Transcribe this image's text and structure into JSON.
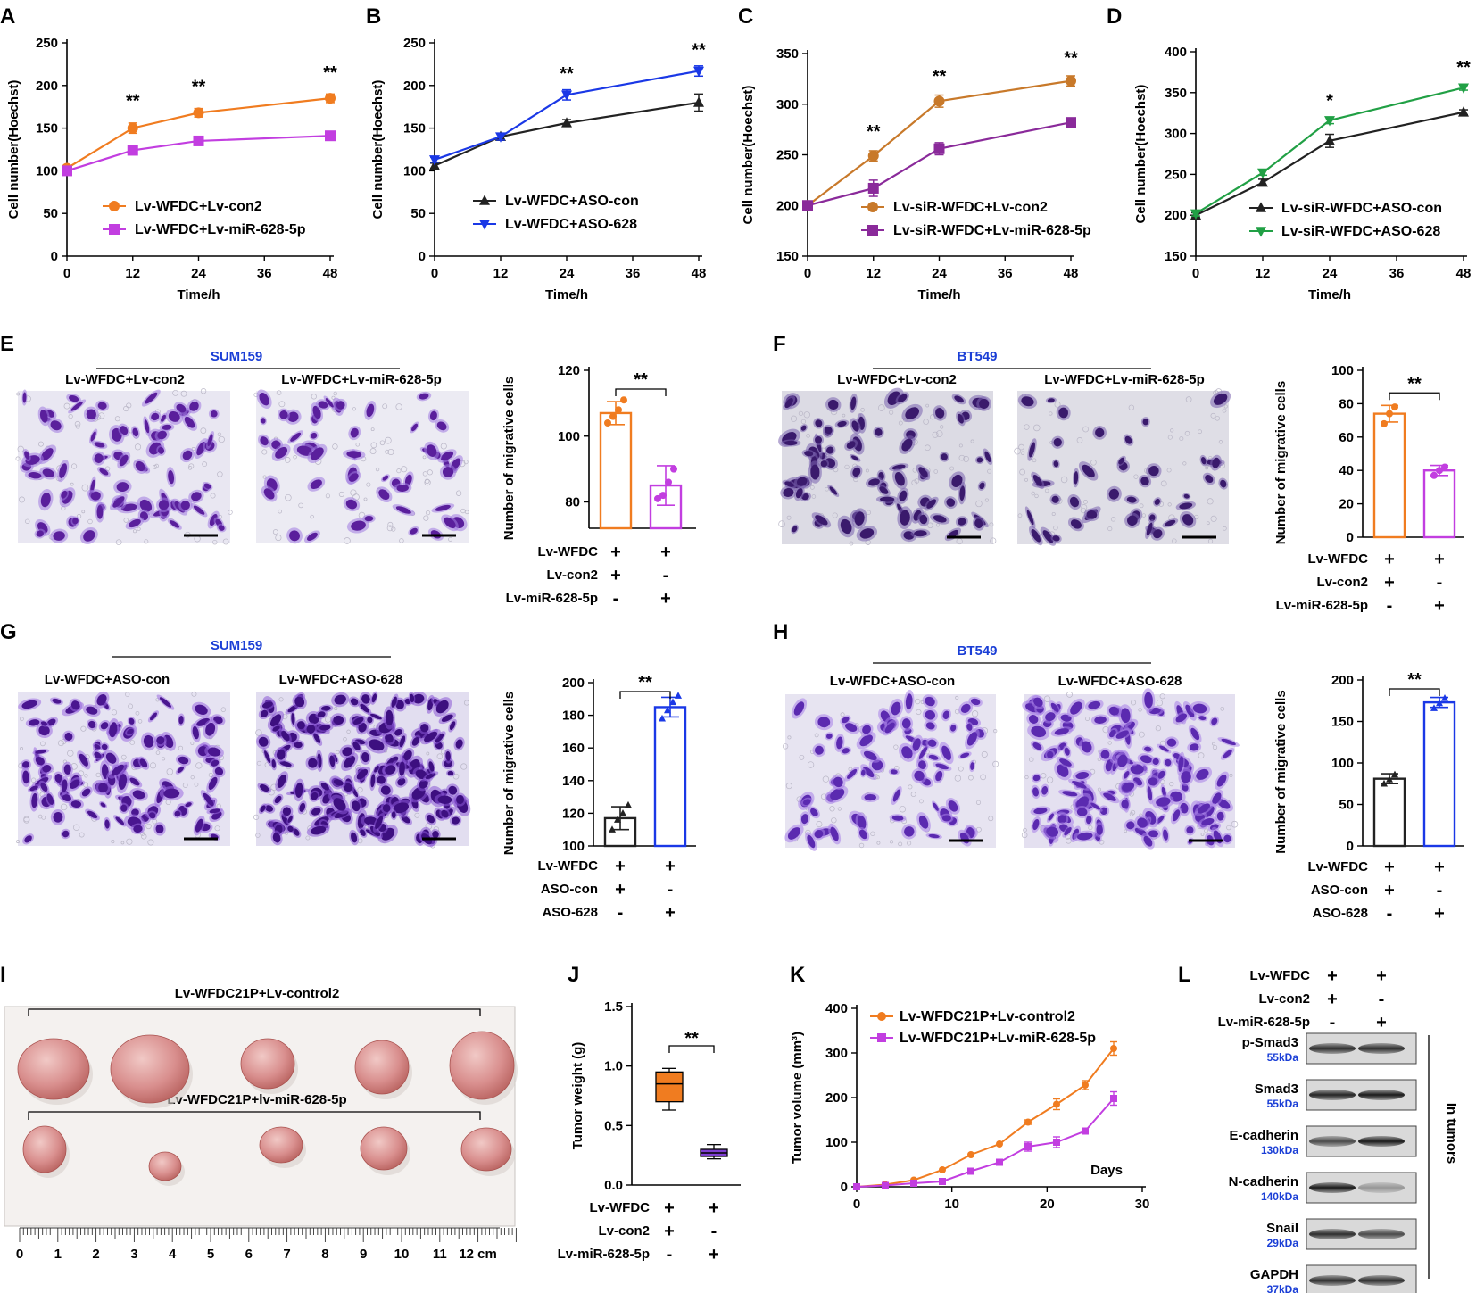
{
  "colors": {
    "orange": "#f07c20",
    "magenta": "#c23ee0",
    "blue": "#1a38e6",
    "black": "#222222",
    "brown": "#c8792a",
    "purple": "#8a2a9a",
    "green": "#21a045",
    "violet": "#7f3fd1",
    "bluelabel": "#1a3ed6"
  },
  "chart_data": [
    {
      "id": "A",
      "type": "line",
      "xlabel": "Time/h",
      "ylabel": "Cell number(Hoechst)",
      "xticks": [
        "0",
        "12",
        "24",
        "36",
        "48"
      ],
      "xlim": [
        0,
        48
      ],
      "yticks": [
        "0",
        "50",
        "100",
        "150",
        "200",
        "250"
      ],
      "ylim": [
        0,
        250
      ],
      "series": [
        {
          "name": "Lv-WFDC+Lv-con2",
          "marker": "circle",
          "color": "orange",
          "x": [
            0,
            12,
            24,
            48
          ],
          "y": [
            103,
            150,
            168,
            185
          ],
          "err": [
            3,
            6,
            5,
            5
          ]
        },
        {
          "name": "Lv-WFDC+Lv-miR-628-5p",
          "marker": "square",
          "color": "magenta",
          "x": [
            0,
            12,
            24,
            48
          ],
          "y": [
            100,
            124,
            135,
            141
          ],
          "err": [
            3,
            4,
            4,
            3
          ]
        }
      ],
      "annotations": [
        {
          "x": 12,
          "text": "**",
          "y": 175
        },
        {
          "x": 24,
          "text": "**",
          "y": 192
        },
        {
          "x": 48,
          "text": "**",
          "y": 208
        }
      ]
    },
    {
      "id": "B",
      "type": "line",
      "xlabel": "Time/h",
      "ylabel": "Cell number(Hoechst)",
      "xticks": [
        "0",
        "12",
        "24",
        "36",
        "48"
      ],
      "xlim": [
        0,
        48
      ],
      "yticks": [
        "0",
        "50",
        "100",
        "150",
        "200",
        "250"
      ],
      "ylim": [
        0,
        250
      ],
      "series": [
        {
          "name": "Lv-WFDC+ASO-con",
          "marker": "tri-up",
          "color": "black",
          "x": [
            0,
            12,
            24,
            48
          ],
          "y": [
            106,
            140,
            156,
            180
          ],
          "err": [
            3,
            4,
            4,
            10
          ]
        },
        {
          "name": "Lv-WFDC+ASO-628",
          "marker": "tri-down",
          "color": "blue",
          "x": [
            0,
            12,
            24,
            48
          ],
          "y": [
            113,
            140,
            189,
            217
          ],
          "err": [
            3,
            4,
            6,
            6
          ]
        }
      ],
      "annotations": [
        {
          "x": 24,
          "text": "**",
          "y": 207
        },
        {
          "x": 48,
          "text": "**",
          "y": 235
        }
      ]
    },
    {
      "id": "C",
      "type": "line",
      "xlabel": "Time/h",
      "ylabel": "Cell number(Hoechst)",
      "xticks": [
        "0",
        "12",
        "24",
        "36",
        "48"
      ],
      "xlim": [
        0,
        48
      ],
      "yticks": [
        "150",
        "200",
        "250",
        "300",
        "350"
      ],
      "ylim": [
        150,
        350
      ],
      "series": [
        {
          "name": "Lv-siR-WFDC+Lv-con2",
          "marker": "circle",
          "color": "brown",
          "x": [
            0,
            12,
            24,
            48
          ],
          "y": [
            200,
            249,
            303,
            323
          ],
          "err": [
            3,
            5,
            6,
            5
          ]
        },
        {
          "name": "Lv-siR-WFDC+Lv-miR-628-5p",
          "marker": "square",
          "color": "purple",
          "x": [
            0,
            12,
            24,
            48
          ],
          "y": [
            200,
            217,
            256,
            282
          ],
          "err": [
            3,
            8,
            6,
            3
          ]
        }
      ],
      "annotations": [
        {
          "x": 12,
          "text": "**",
          "y": 267
        },
        {
          "x": 24,
          "text": "**",
          "y": 322
        },
        {
          "x": 48,
          "text": "**",
          "y": 340
        }
      ]
    },
    {
      "id": "D",
      "type": "line",
      "xlabel": "Time/h",
      "ylabel": "Cell number(Hoechst)",
      "xticks": [
        "0",
        "12",
        "24",
        "36",
        "48"
      ],
      "xlim": [
        0,
        48
      ],
      "yticks": [
        "150",
        "200",
        "250",
        "300",
        "350",
        "400"
      ],
      "ylim": [
        150,
        400
      ],
      "series": [
        {
          "name": "Lv-siR-WFDC+ASO-con",
          "marker": "tri-up",
          "color": "black",
          "x": [
            0,
            12,
            24,
            48
          ],
          "y": [
            200,
            240,
            291,
            326
          ],
          "err": [
            3,
            4,
            8,
            3
          ]
        },
        {
          "name": "Lv-siR-WFDC+ASO-628",
          "marker": "tri-down",
          "color": "green",
          "x": [
            0,
            12,
            24,
            48
          ],
          "y": [
            202,
            252,
            316,
            356
          ],
          "err": [
            3,
            3,
            4,
            3
          ]
        }
      ],
      "annotations": [
        {
          "x": 24,
          "text": "*",
          "y": 333
        },
        {
          "x": 48,
          "text": "**",
          "y": 374
        }
      ]
    },
    {
      "id": "E",
      "type": "bar",
      "ylabel": "Number of migrative cells",
      "yticks": [
        "80",
        "100",
        "120"
      ],
      "ylim": [
        72,
        120
      ],
      "categories": [
        "Lv-WFDC+Lv-con2",
        "Lv-WFDC+Lv-miR-628-5p"
      ],
      "values": [
        107,
        85
      ],
      "err": [
        3.5,
        6
      ],
      "points": [
        [
          104,
          106,
          108,
          111
        ],
        [
          81,
          82,
          86,
          90
        ]
      ],
      "colors": [
        "orange",
        "magenta"
      ],
      "point_marker": "circle",
      "sig": "**",
      "conditions": [
        {
          "label": "Lv-WFDC",
          "marks": [
            "+",
            "+"
          ]
        },
        {
          "label": "Lv-con2",
          "marks": [
            "+",
            "-"
          ]
        },
        {
          "label": "Lv-miR-628-5p",
          "marks": [
            "-",
            "+"
          ]
        }
      ]
    },
    {
      "id": "F",
      "type": "bar",
      "ylabel": "Number of migrative cells",
      "yticks": [
        "0",
        "20",
        "40",
        "60",
        "80",
        "100"
      ],
      "ylim": [
        0,
        100
      ],
      "categories": [
        "Lv-WFDC+Lv-con2",
        "Lv-WFDC+Lv-miR-628-5p"
      ],
      "values": [
        74,
        40
      ],
      "err": [
        5,
        3
      ],
      "points": [
        [
          68,
          74,
          78
        ],
        [
          37,
          40,
          42
        ]
      ],
      "colors": [
        "orange",
        "magenta"
      ],
      "point_marker": "circle",
      "sig": "**",
      "conditions": [
        {
          "label": "Lv-WFDC",
          "marks": [
            "+",
            "+"
          ]
        },
        {
          "label": "Lv-con2",
          "marks": [
            "+",
            "-"
          ]
        },
        {
          "label": "Lv-miR-628-5p",
          "marks": [
            "-",
            "+"
          ]
        }
      ]
    },
    {
      "id": "G",
      "type": "bar",
      "ylabel": "Number of migrative cells",
      "yticks": [
        "100",
        "120",
        "140",
        "160",
        "180",
        "200"
      ],
      "ylim": [
        100,
        200
      ],
      "categories": [
        "Lv-WFDC+ASO-con",
        "Lv-WFDC+ASO-628"
      ],
      "values": [
        117,
        185
      ],
      "err": [
        7,
        6
      ],
      "points": [
        [
          110,
          116,
          120,
          125
        ],
        [
          178,
          183,
          188,
          192
        ]
      ],
      "colors": [
        "black",
        "blue"
      ],
      "point_marker": "triangle",
      "sig": "**",
      "conditions": [
        {
          "label": "Lv-WFDC",
          "marks": [
            "+",
            "+"
          ]
        },
        {
          "label": "ASO-con",
          "marks": [
            "+",
            "-"
          ]
        },
        {
          "label": "ASO-628",
          "marks": [
            "-",
            "+"
          ]
        }
      ]
    },
    {
      "id": "H",
      "type": "bar",
      "ylabel": "Number of migrative cells",
      "yticks": [
        "0",
        "50",
        "100",
        "150",
        "200"
      ],
      "ylim": [
        0,
        200
      ],
      "categories": [
        "Lv-WFDC+ASO-con",
        "Lv-WFDC+ASO-628"
      ],
      "values": [
        81,
        173
      ],
      "err": [
        6,
        6
      ],
      "points": [
        [
          75,
          80,
          86
        ],
        [
          166,
          172,
          178
        ]
      ],
      "colors": [
        "black",
        "blue"
      ],
      "point_marker": "triangle",
      "sig": "**",
      "conditions": [
        {
          "label": "Lv-WFDC",
          "marks": [
            "+",
            "+"
          ]
        },
        {
          "label": "ASO-con",
          "marks": [
            "+",
            "-"
          ]
        },
        {
          "label": "ASO-628",
          "marks": [
            "-",
            "+"
          ]
        }
      ]
    },
    {
      "id": "J",
      "type": "box",
      "ylabel": "Tumor weight (g)",
      "yticks": [
        "0.0",
        "0.5",
        "1.0",
        "1.5"
      ],
      "ylim": [
        0,
        1.5
      ],
      "boxes": [
        {
          "min": 0.63,
          "q1": 0.7,
          "median": 0.85,
          "q3": 0.95,
          "max": 0.98,
          "color": "orange"
        },
        {
          "min": 0.22,
          "q1": 0.24,
          "median": 0.27,
          "q3": 0.3,
          "max": 0.34,
          "color": "violet"
        }
      ],
      "sig": "**",
      "conditions": [
        {
          "label": "Lv-WFDC",
          "marks": [
            "+",
            "+"
          ]
        },
        {
          "label": "Lv-con2",
          "marks": [
            "+",
            "-"
          ]
        },
        {
          "label": "Lv-miR-628-5p",
          "marks": [
            "-",
            "+"
          ]
        }
      ]
    },
    {
      "id": "K",
      "type": "line",
      "ylabel": "Tumor volume (mm³)",
      "xlabel": "Days",
      "xticks": [
        "0",
        "10",
        "20",
        "30"
      ],
      "xlim": [
        0,
        30
      ],
      "yticks": [
        "0",
        "100",
        "200",
        "300",
        "400"
      ],
      "ylim": [
        0,
        400
      ],
      "series": [
        {
          "name": "Lv-WFDC21P+Lv-control2",
          "marker": "circle",
          "color": "orange",
          "x": [
            0,
            3,
            6,
            9,
            12,
            15,
            18,
            21,
            24,
            27
          ],
          "y": [
            0,
            5,
            15,
            38,
            72,
            96,
            145,
            185,
            228,
            310
          ],
          "err": [
            0,
            0,
            0,
            0,
            0,
            0,
            5,
            12,
            10,
            15
          ]
        },
        {
          "name": "Lv-WFDC21P+Lv-miR-628-5p",
          "marker": "square",
          "color": "magenta",
          "x": [
            0,
            3,
            6,
            9,
            12,
            15,
            18,
            21,
            24,
            27
          ],
          "y": [
            0,
            3,
            8,
            12,
            35,
            55,
            90,
            100,
            125,
            198
          ],
          "err": [
            0,
            0,
            0,
            0,
            0,
            0,
            10,
            12,
            0,
            15
          ]
        }
      ]
    }
  ],
  "panels": {
    "A": "A",
    "B": "B",
    "C": "C",
    "D": "D",
    "E": "E",
    "F": "F",
    "G": "G",
    "H": "H",
    "I": "I",
    "J": "J",
    "K": "K",
    "L": "L"
  },
  "micro": {
    "E": {
      "cell": "SUM159",
      "left": "Lv-WFDC+Lv-con2",
      "right": "Lv-WFDC+Lv-miR-628-5p"
    },
    "F": {
      "cell": "BT549",
      "left": "Lv-WFDC+Lv-con2",
      "right": "Lv-WFDC+Lv-miR-628-5p"
    },
    "G": {
      "cell": "SUM159",
      "left": "Lv-WFDC+ASO-con",
      "right": "Lv-WFDC+ASO-628"
    },
    "H": {
      "cell": "BT549",
      "left": "Lv-WFDC+ASO-con",
      "right": "Lv-WFDC+ASO-628"
    }
  },
  "tumor_photo": {
    "top_label": "Lv-WFDC21P+Lv-control2",
    "bottom_label": "Lv-WFDC21P+lv-miR-628-5p",
    "ruler": [
      "0",
      "1",
      "2",
      "3",
      "4",
      "5",
      "6",
      "7",
      "8",
      "9",
      "10",
      "11",
      "12 cm"
    ]
  },
  "blot": {
    "conditions": [
      {
        "label": "Lv-WFDC",
        "marks": [
          "+",
          "+"
        ]
      },
      {
        "label": "Lv-con2",
        "marks": [
          "+",
          "-"
        ]
      },
      {
        "label": "Lv-miR-628-5p",
        "marks": [
          "-",
          "+"
        ]
      }
    ],
    "bands": [
      {
        "name": "p-Smad3",
        "kda": "55kDa"
      },
      {
        "name": "Smad3",
        "kda": "55kDa"
      },
      {
        "name": "E-cadherin",
        "kda": "130kDa"
      },
      {
        "name": "N-cadherin",
        "kda": "140kDa"
      },
      {
        "name": "Snail",
        "kda": "29kDa"
      },
      {
        "name": "GAPDH",
        "kda": "37kDa"
      }
    ],
    "side_label": "In tumors"
  }
}
